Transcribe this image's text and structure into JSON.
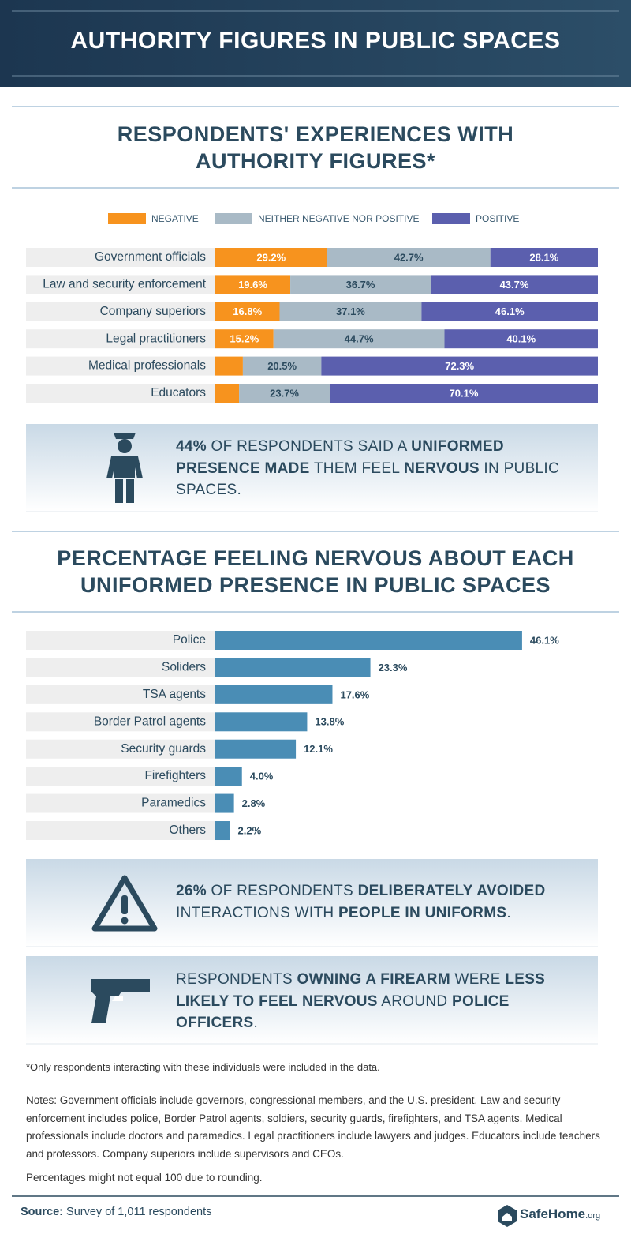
{
  "header": {
    "title": "AUTHORITY FIGURES IN PUBLIC SPACES"
  },
  "chart_data": [
    {
      "type": "stacked_bar_horizontal",
      "title": "RESPONDENTS' EXPERIENCES WITH AUTHORITY FIGURES*",
      "categories": [
        "Government officials",
        "Law and security enforcement",
        "Company superiors",
        "Legal practitioners",
        "Medical professionals",
        "Educators"
      ],
      "xlim": [
        0,
        100
      ],
      "legend": "top",
      "series": [
        {
          "name": "NEGATIVE",
          "color": "#f7931e",
          "label_color": "#ffffff",
          "values": [
            29.2,
            19.6,
            16.8,
            15.2,
            7.2,
            6.2
          ],
          "value_labels": [
            "29.2%",
            "19.6%",
            "16.8%",
            "15.2%",
            null,
            null
          ]
        },
        {
          "name": "NEITHER NEGATIVE NOR POSITIVE",
          "color": "#a9bac6",
          "label_color": "#2b4a5e",
          "values": [
            42.7,
            36.7,
            37.1,
            44.7,
            20.5,
            23.7
          ],
          "value_labels": [
            "42.7%",
            "36.7%",
            "37.1%",
            "44.7%",
            "20.5%",
            "23.7%"
          ]
        },
        {
          "name": "POSITIVE",
          "color": "#5b5fae",
          "label_color": "#ffffff",
          "values": [
            28.1,
            43.7,
            46.1,
            40.1,
            72.3,
            70.1
          ],
          "value_labels": [
            "28.1%",
            "43.7%",
            "46.1%",
            "40.1%",
            "72.3%",
            "70.1%"
          ]
        }
      ]
    },
    {
      "type": "bar_horizontal",
      "title": "PERCENTAGE FEELING NERVOUS ABOUT EACH UNIFORMED PRESENCE IN PUBLIC SPACES",
      "categories": [
        "Police",
        "Soliders",
        "TSA agents",
        "Border Patrol agents",
        "Security guards",
        "Firefighters",
        "Paramedics",
        "Others"
      ],
      "values": [
        46.1,
        23.3,
        17.6,
        13.8,
        12.1,
        4.0,
        2.8,
        2.2
      ],
      "value_labels": [
        "46.1%",
        "23.3%",
        "17.6%",
        "13.8%",
        "12.1%",
        "4.0%",
        "2.8%",
        "2.2%"
      ],
      "color": "#4a8db5",
      "xlim": [
        0,
        55
      ]
    }
  ],
  "callouts": [
    {
      "parts": [
        {
          "text": "44%",
          "bold": true
        },
        {
          "text": " OF RESPONDENTS SAID A ",
          "bold": false
        },
        {
          "text": "UNIFORMED PRESENCE MADE",
          "bold": true
        },
        {
          "text": " THEM FEEL ",
          "bold": false
        },
        {
          "text": "NERVOUS",
          "bold": true
        },
        {
          "text": " IN PUBLIC SPACES.",
          "bold": false
        }
      ]
    },
    {
      "parts": [
        {
          "text": "26%",
          "bold": true
        },
        {
          "text": " OF RESPONDENTS ",
          "bold": false
        },
        {
          "text": "DELIBERATELY AVOIDED",
          "bold": true
        },
        {
          "text": " INTERACTIONS WITH ",
          "bold": false
        },
        {
          "text": "PEOPLE IN UNIFORMS",
          "bold": true
        },
        {
          "text": ".",
          "bold": false
        }
      ]
    },
    {
      "parts": [
        {
          "text": "RESPONDENTS ",
          "bold": false
        },
        {
          "text": "OWNING A FIREARM",
          "bold": true
        },
        {
          "text": " WERE ",
          "bold": false
        },
        {
          "text": "LESS LIKELY TO FEEL NERVOUS",
          "bold": true
        },
        {
          "text": " AROUND ",
          "bold": false
        },
        {
          "text": "POLICE OFFICERS",
          "bold": true
        },
        {
          "text": ".",
          "bold": false
        }
      ]
    }
  ],
  "footnote": "*Only respondents interacting with these individuals were included in the data.",
  "notes": [
    "Notes: Government officials include governors, congressional members, and the U.S. president. Law and security enforcement includes police, Border Patrol agents, soldiers, security guards, firefighters, and TSA agents. Medical professionals include doctors and paramedics. Legal practitioners include lawyers and judges. Educators include teachers and professors. Company superiors include supervisors and CEOs.",
    "Percentages might not equal 100 due to rounding."
  ],
  "source": {
    "label": "Source:",
    "text": "Survey of 1,011 respondents"
  },
  "logo": {
    "name": "SafeHome",
    "suffix": ".org"
  }
}
